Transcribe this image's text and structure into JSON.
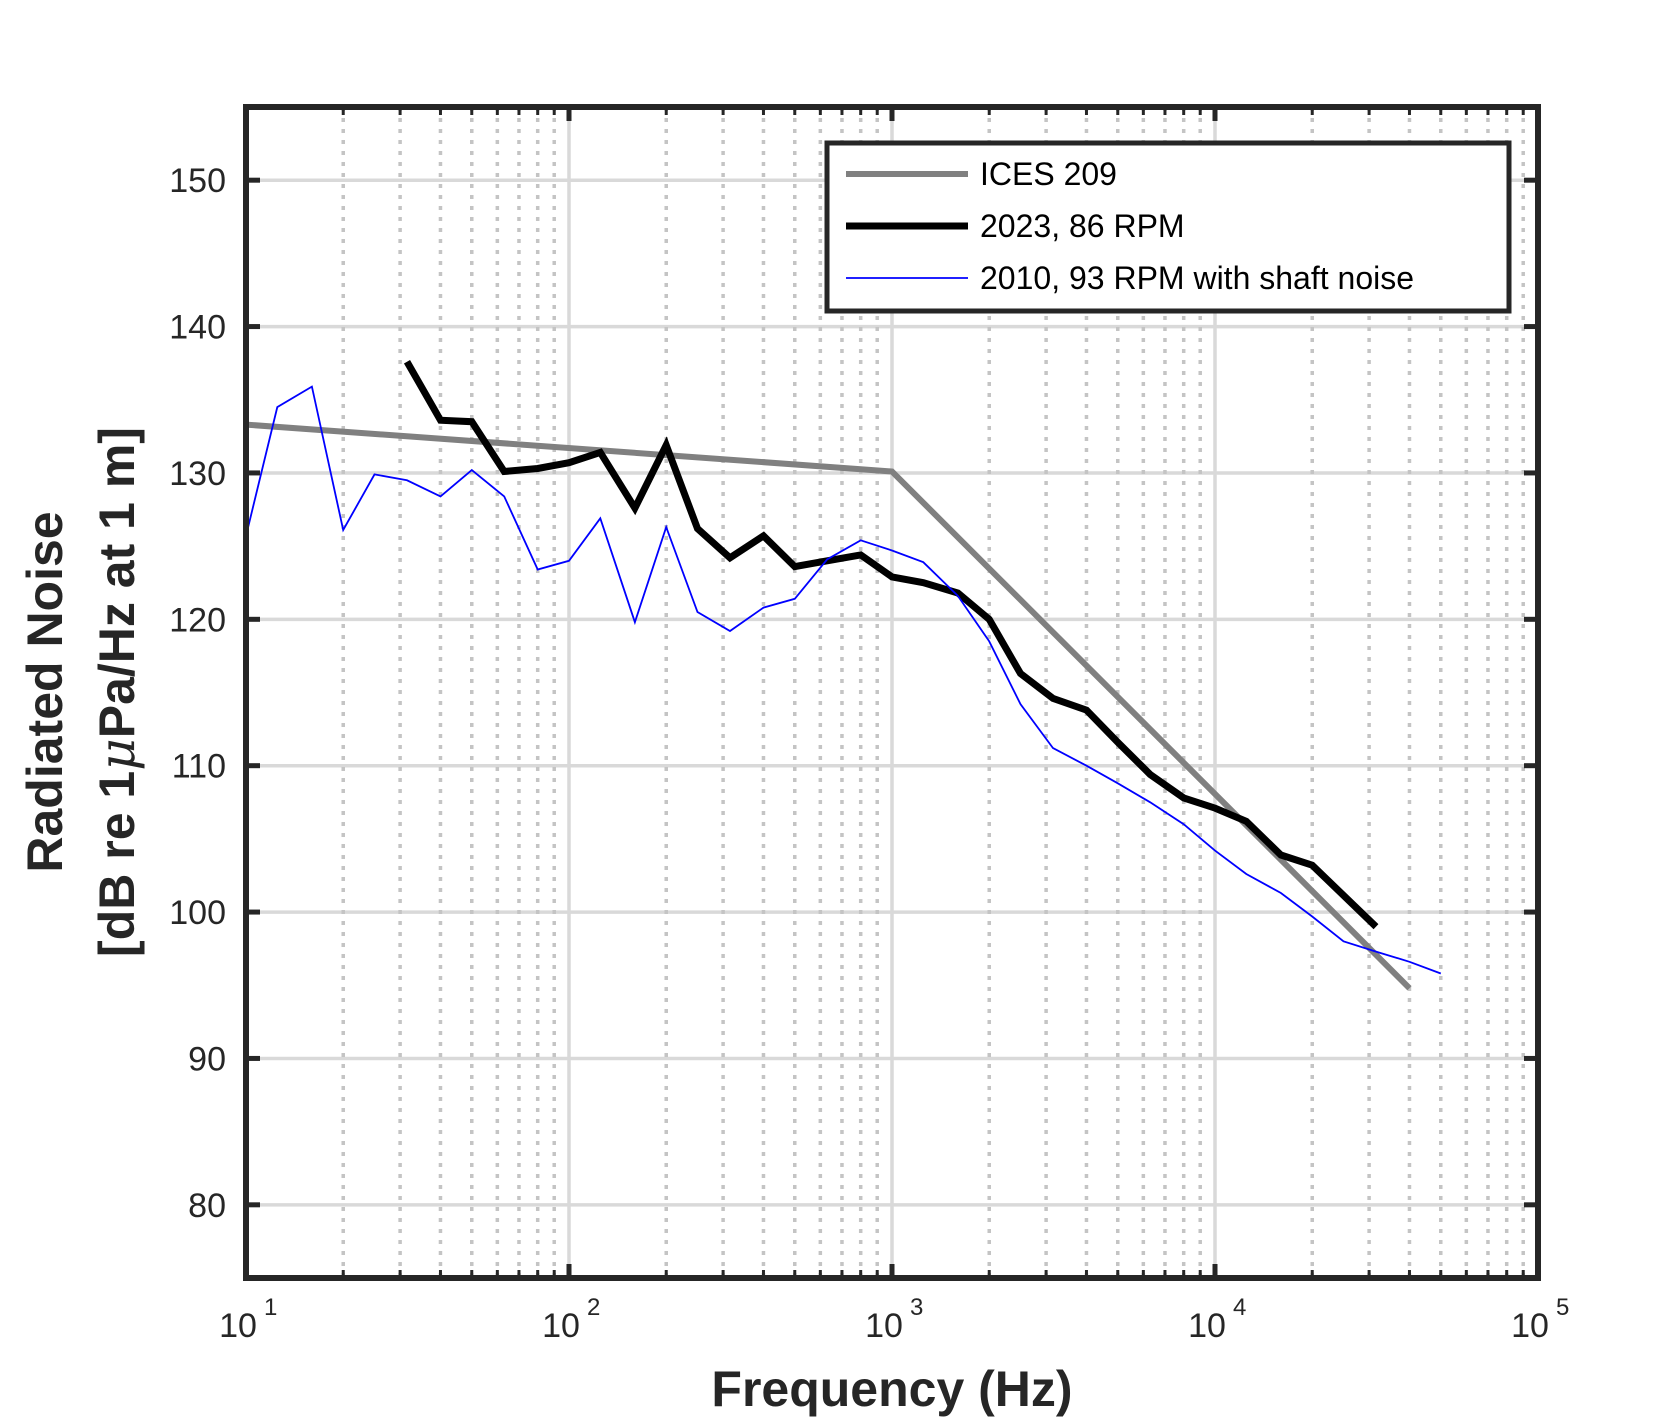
{
  "chart_data": {
    "type": "line",
    "xscale": "log",
    "xlim": [
      10,
      100000
    ],
    "ylim": [
      75,
      155
    ],
    "xlabel": "Frequency (Hz)",
    "ylabel_line1": "Radiated Noise",
    "ylabel_line2_prefix": "[dB re 1",
    "ylabel_line2_mu": "μ",
    "ylabel_line2_suffix": "Pa/Hz at 1 m]",
    "grid": true,
    "legend_position": "top-right",
    "x_ticks": [
      {
        "value": 10,
        "base": "10",
        "exp": "1"
      },
      {
        "value": 100,
        "base": "10",
        "exp": "2"
      },
      {
        "value": 1000,
        "base": "10",
        "exp": "3"
      },
      {
        "value": 10000,
        "base": "10",
        "exp": "4"
      },
      {
        "value": 100000,
        "base": "10",
        "exp": "5"
      }
    ],
    "y_ticks": [
      80,
      90,
      100,
      110,
      120,
      130,
      140,
      150
    ],
    "series": [
      {
        "name": "ICES 209",
        "color": "#808080",
        "width": 6,
        "x": [
          10,
          1000,
          40000
        ],
        "y": [
          133.3,
          130.1,
          94.8
        ]
      },
      {
        "name": "2023, 86 RPM",
        "color": "#000000",
        "width": 7,
        "x": [
          31.5,
          40,
          50,
          63,
          80,
          100,
          125,
          160,
          200,
          250,
          315,
          400,
          500,
          630,
          800,
          1000,
          1250,
          1600,
          2000,
          2500,
          3150,
          4000,
          5000,
          6300,
          8000,
          10000,
          12500,
          16000,
          20000,
          31500
        ],
        "y": [
          137.6,
          133.6,
          133.5,
          130.1,
          130.3,
          130.7,
          131.4,
          127.6,
          131.9,
          126.2,
          124.2,
          125.7,
          123.6,
          124.0,
          124.4,
          122.9,
          122.5,
          121.8,
          120.0,
          116.3,
          114.6,
          113.8,
          111.6,
          109.4,
          107.8,
          107.1,
          106.2,
          103.9,
          103.2,
          99.0
        ]
      },
      {
        "name": "2010, 93 RPM with shaft noise",
        "color": "#0000ff",
        "width": 1.8,
        "x": [
          10,
          12.5,
          16,
          20,
          25,
          31.5,
          40,
          50,
          63,
          80,
          100,
          125,
          160,
          200,
          250,
          315,
          400,
          500,
          630,
          800,
          1000,
          1250,
          1600,
          2000,
          2500,
          3150,
          4000,
          5000,
          6300,
          8000,
          10000,
          12500,
          16000,
          20000,
          25000,
          31500,
          40000,
          50000
        ],
        "y": [
          125.7,
          134.5,
          135.9,
          126.1,
          129.9,
          129.5,
          128.4,
          130.2,
          128.4,
          123.4,
          124.0,
          126.9,
          119.8,
          126.3,
          120.5,
          119.2,
          120.8,
          121.4,
          124.1,
          125.4,
          124.7,
          123.9,
          121.6,
          118.5,
          114.2,
          111.2,
          110.0,
          108.8,
          107.5,
          106.0,
          104.2,
          102.6,
          101.3,
          99.7,
          98.0,
          97.3,
          96.6,
          95.8
        ]
      }
    ]
  }
}
